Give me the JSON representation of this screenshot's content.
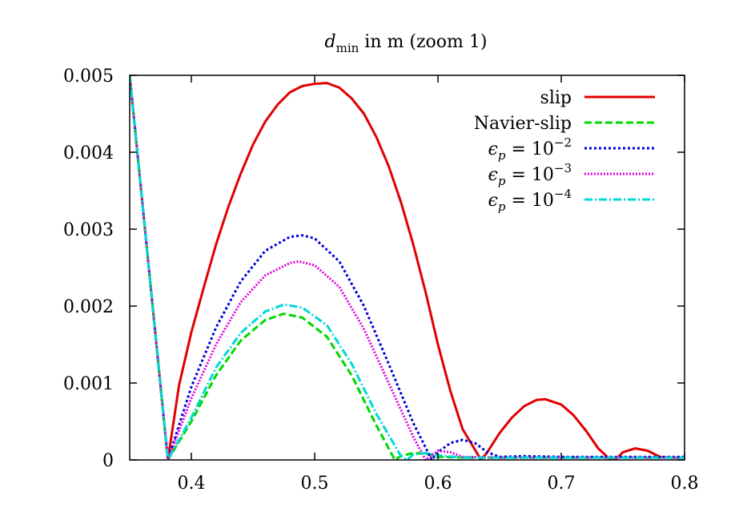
{
  "chart_data": {
    "type": "line",
    "title": {
      "main": "d",
      "sub": "min",
      "suffix": " in m (zoom 1)"
    },
    "xlabel": "",
    "ylabel": "",
    "xlim": [
      0.35,
      0.8
    ],
    "ylim": [
      0,
      0.005
    ],
    "x_ticks": [
      {
        "value": 0.4,
        "label": "0.4"
      },
      {
        "value": 0.5,
        "label": "0.5"
      },
      {
        "value": 0.6,
        "label": "0.6"
      },
      {
        "value": 0.7,
        "label": "0.7"
      },
      {
        "value": 0.8,
        "label": "0.8"
      }
    ],
    "y_ticks": [
      {
        "value": 0,
        "label": "0"
      },
      {
        "value": 0.001,
        "label": "0.001"
      },
      {
        "value": 0.002,
        "label": "0.002"
      },
      {
        "value": 0.003,
        "label": "0.003"
      },
      {
        "value": 0.004,
        "label": "0.004"
      },
      {
        "value": 0.005,
        "label": "0.005"
      }
    ],
    "grid": false,
    "legend_position": "top-right",
    "series": [
      {
        "name": "slip",
        "legend": {
          "text": "slip"
        },
        "color": "#e00000",
        "dash": "none",
        "x": [
          0.35,
          0.381,
          0.39,
          0.4,
          0.41,
          0.42,
          0.43,
          0.44,
          0.45,
          0.46,
          0.47,
          0.48,
          0.49,
          0.5,
          0.51,
          0.52,
          0.53,
          0.54,
          0.55,
          0.56,
          0.57,
          0.58,
          0.59,
          0.6,
          0.61,
          0.62,
          0.635,
          0.64,
          0.65,
          0.66,
          0.67,
          0.68,
          0.687,
          0.7,
          0.71,
          0.72,
          0.73,
          0.74,
          0.745,
          0.75,
          0.76,
          0.77,
          0.78,
          0.79,
          0.8
        ],
        "y": [
          0.005,
          0.0,
          0.00097,
          0.00166,
          0.00224,
          0.0028,
          0.00329,
          0.00372,
          0.0041,
          0.0044,
          0.00462,
          0.00478,
          0.00486,
          0.00489,
          0.0049,
          0.00484,
          0.0047,
          0.0045,
          0.0042,
          0.00382,
          0.00335,
          0.0028,
          0.00218,
          0.0015,
          0.0009,
          0.0004,
          0.0,
          0.0001,
          0.00035,
          0.00055,
          0.0007,
          0.00078,
          0.00079,
          0.00072,
          0.00058,
          0.00038,
          0.00015,
          0.0,
          2e-05,
          0.0001,
          0.00015,
          0.00012,
          4e-05,
          3e-05,
          3e-05
        ]
      },
      {
        "name": "Navier-slip",
        "legend": {
          "text": "Navier-slip"
        },
        "color": "#00d800",
        "dash": "9,4",
        "x": [
          0.35,
          0.381,
          0.4,
          0.42,
          0.44,
          0.46,
          0.475,
          0.49,
          0.51,
          0.53,
          0.55,
          0.565,
          0.57,
          0.58,
          0.59,
          0.6,
          0.62,
          0.65,
          0.7,
          0.75,
          0.8
        ],
        "y": [
          0.005,
          0.0,
          0.0005,
          0.0011,
          0.00155,
          0.00182,
          0.0019,
          0.00185,
          0.0016,
          0.0011,
          0.00045,
          0.0,
          5e-05,
          9e-05,
          8e-05,
          4e-05,
          3e-05,
          3e-05,
          3e-05,
          3e-05,
          3e-05
        ]
      },
      {
        "name": "eps_1e-2",
        "legend": {
          "base": "ϵ",
          "sub": "p",
          "middle": " = 10",
          "exp": "−2"
        },
        "color": "#0000e0",
        "dash": "3,3",
        "x": [
          0.35,
          0.381,
          0.4,
          0.42,
          0.44,
          0.46,
          0.48,
          0.49,
          0.5,
          0.52,
          0.54,
          0.56,
          0.58,
          0.595,
          0.6,
          0.61,
          0.62,
          0.63,
          0.64,
          0.65,
          0.67,
          0.7,
          0.75,
          0.8
        ],
        "y": [
          0.005,
          0.0,
          0.00095,
          0.00172,
          0.00232,
          0.00272,
          0.0029,
          0.00292,
          0.00288,
          0.00258,
          0.002,
          0.00125,
          0.00048,
          0.0,
          0.0001,
          0.00022,
          0.00026,
          0.00022,
          0.0001,
          4e-05,
          5e-05,
          4e-05,
          4e-05,
          4e-05
        ]
      },
      {
        "name": "eps_1e-3",
        "legend": {
          "base": "ϵ",
          "sub": "p",
          "middle": " = 10",
          "exp": "−3"
        },
        "color": "#e000e0",
        "dash": "2,2",
        "x": [
          0.35,
          0.381,
          0.4,
          0.42,
          0.44,
          0.46,
          0.48,
          0.487,
          0.5,
          0.52,
          0.54,
          0.56,
          0.58,
          0.59,
          0.6,
          0.61,
          0.62,
          0.65,
          0.7,
          0.75,
          0.8
        ],
        "y": [
          0.005,
          0.0,
          0.0008,
          0.0015,
          0.00205,
          0.0024,
          0.00256,
          0.00258,
          0.00253,
          0.00225,
          0.0017,
          0.001,
          0.0003,
          0.0,
          0.00012,
          0.0001,
          4e-05,
          3e-05,
          3e-05,
          3e-05,
          3e-05
        ]
      },
      {
        "name": "eps_1e-4",
        "legend": {
          "base": "ϵ",
          "sub": "p",
          "middle": " = 10",
          "exp": "−4"
        },
        "color": "#00d8d8",
        "dash": "10,3,2,3",
        "x": [
          0.35,
          0.381,
          0.4,
          0.42,
          0.44,
          0.46,
          0.475,
          0.49,
          0.51,
          0.53,
          0.55,
          0.57,
          0.575,
          0.58,
          0.59,
          0.6,
          0.62,
          0.65,
          0.7,
          0.75,
          0.8
        ],
        "y": [
          0.005,
          0.0,
          0.00055,
          0.0012,
          0.00165,
          0.00193,
          0.00202,
          0.00198,
          0.00175,
          0.00125,
          0.0006,
          5e-05,
          0.0,
          7e-05,
          9e-05,
          6e-05,
          3e-05,
          3e-05,
          3e-05,
          3e-05,
          3e-05
        ]
      }
    ]
  }
}
